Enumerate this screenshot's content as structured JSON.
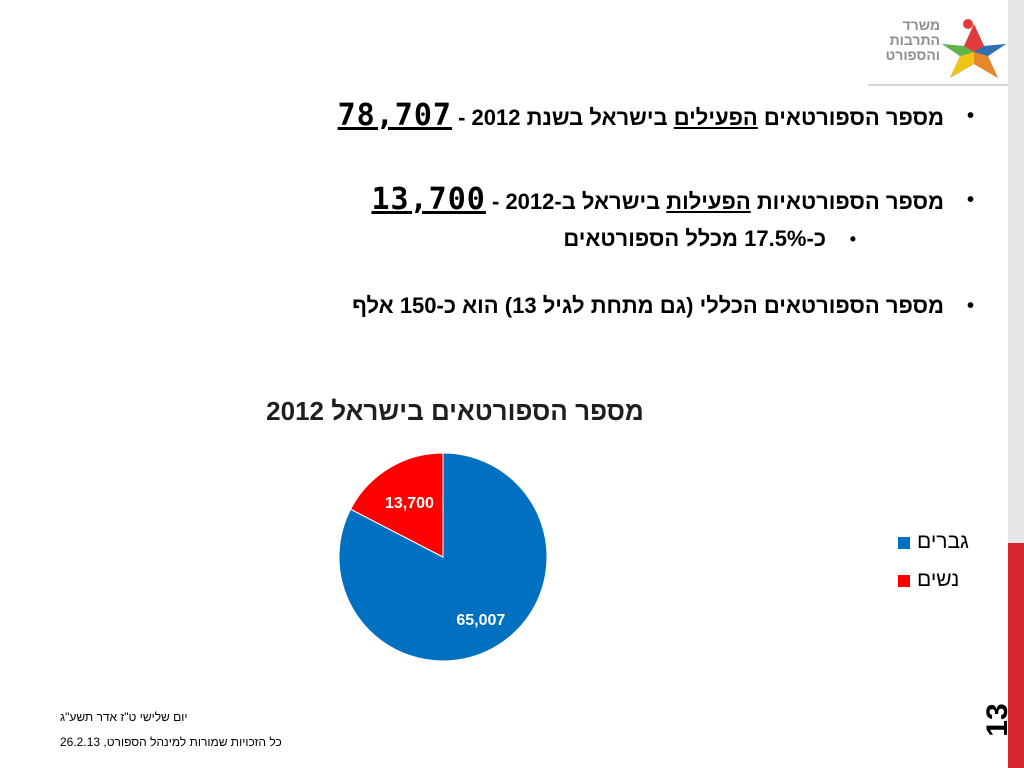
{
  "logo": {
    "line1": "משרד",
    "line2": "התרבות",
    "line3": "והספורט"
  },
  "bullets": {
    "b1": {
      "text": "מספר הספורטאים ",
      "emph": "הפעילים",
      "rest": " בישראל בשנת 2012 - ",
      "number": "78,707"
    },
    "b2": {
      "text": "מספר הספורטאיות ",
      "emph": "הפעילות",
      "rest": " בישראל ב-2012 - ",
      "number": "13,700"
    },
    "b2_sub": "כ-17.5% מכלל הספורטאים",
    "b3": "מספר הספורטאים הכללי (גם מתחת לגיל 13) הוא כ-150 אלף"
  },
  "chart_data": {
    "type": "pie",
    "title": "מספר הספורטאים בישראל 2012",
    "categories": [
      "גברים",
      "נשים"
    ],
    "values": [
      65007,
      13700
    ],
    "data_labels": [
      "65,007",
      "13,700"
    ],
    "colors": [
      "#0070c0",
      "#ff0000"
    ],
    "legend_position": "right"
  },
  "footer": {
    "line1": "יום שלישי ט\"ז אדר תשע\"ג",
    "line2": "כל הזכויות שמורות למינהל הספורט, 26.2.13"
  },
  "slide_number": "13"
}
